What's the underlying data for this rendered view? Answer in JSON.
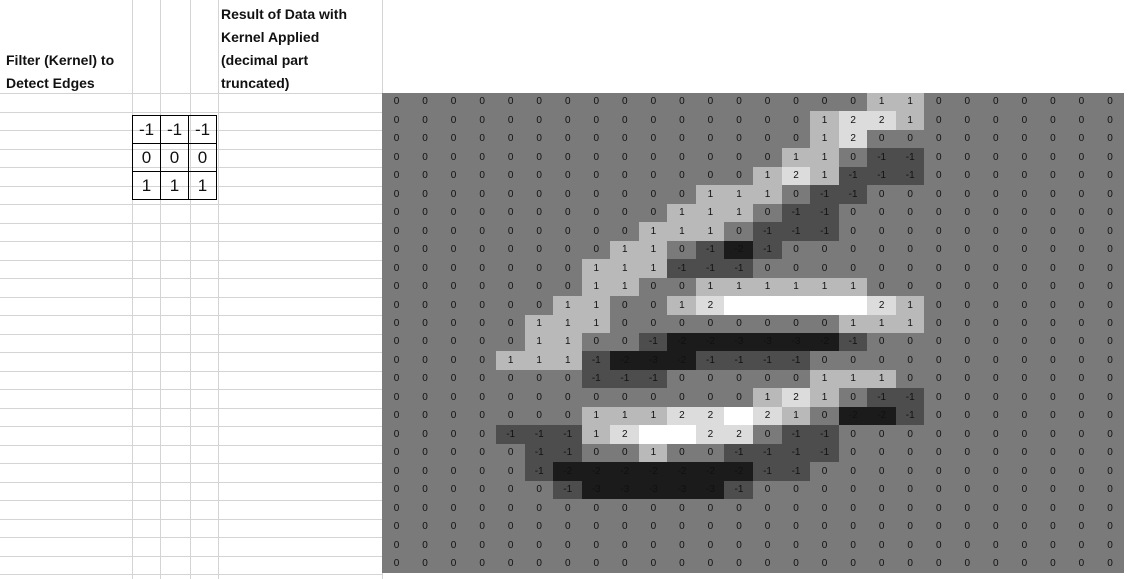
{
  "sheet": {
    "filter_label_line1": "Filter (Kernel) to",
    "filter_label_line2": "Detect Edges",
    "result_label_line1": "Result of Data with",
    "result_label_line2": "Kernel Applied",
    "result_label_line3": "(decimal part",
    "result_label_line4": "truncated)"
  },
  "kernel": [
    [
      "-1",
      "-1",
      "-1"
    ],
    [
      "0",
      "0",
      "0"
    ],
    [
      "1",
      "1",
      "1"
    ]
  ],
  "heatmap_colors": {
    "base": "#7a7a7a",
    "dark": "#1b1b1b",
    "medium_dark": "#4d4d4d",
    "slight_dark": "#6a6a6a",
    "light1": "#b9b9b9",
    "light2": "#dcdcdc",
    "light3": "#ffffff"
  },
  "result_grid": [
    [
      0,
      0,
      0,
      0,
      0,
      0,
      0,
      0,
      0,
      0,
      0,
      0,
      0,
      0,
      0,
      0,
      0,
      1,
      1,
      0,
      0,
      0,
      0,
      0,
      0,
      0
    ],
    [
      0,
      0,
      0,
      0,
      0,
      0,
      0,
      0,
      0,
      0,
      0,
      0,
      0,
      0,
      0,
      1,
      2,
      2,
      1,
      0,
      0,
      0,
      0,
      0,
      0,
      0
    ],
    [
      0,
      0,
      0,
      0,
      0,
      0,
      0,
      0,
      0,
      0,
      0,
      0,
      0,
      0,
      0,
      1,
      2,
      0,
      0,
      0,
      0,
      0,
      0,
      0,
      0,
      0
    ],
    [
      0,
      0,
      0,
      0,
      0,
      0,
      0,
      0,
      0,
      0,
      0,
      0,
      0,
      0,
      1,
      1,
      0,
      -1,
      -1,
      0,
      0,
      0,
      0,
      0,
      0,
      0
    ],
    [
      0,
      0,
      0,
      0,
      0,
      0,
      0,
      0,
      0,
      0,
      0,
      0,
      0,
      1,
      2,
      1,
      -1,
      -1,
      -1,
      0,
      0,
      0,
      0,
      0,
      0,
      0
    ],
    [
      0,
      0,
      0,
      0,
      0,
      0,
      0,
      0,
      0,
      0,
      0,
      1,
      1,
      1,
      0,
      -1,
      -1,
      0,
      0,
      0,
      0,
      0,
      0,
      0,
      0,
      0
    ],
    [
      0,
      0,
      0,
      0,
      0,
      0,
      0,
      0,
      0,
      0,
      1,
      1,
      1,
      0,
      -1,
      -1,
      0,
      0,
      0,
      0,
      0,
      0,
      0,
      0,
      0,
      0
    ],
    [
      0,
      0,
      0,
      0,
      0,
      0,
      0,
      0,
      0,
      1,
      1,
      1,
      0,
      -1,
      -1,
      -1,
      0,
      0,
      0,
      0,
      0,
      0,
      0,
      0,
      0,
      0
    ],
    [
      0,
      0,
      0,
      0,
      0,
      0,
      0,
      0,
      1,
      1,
      0,
      -1,
      -2,
      -1,
      0,
      0,
      0,
      0,
      0,
      0,
      0,
      0,
      0,
      0,
      0,
      0
    ],
    [
      0,
      0,
      0,
      0,
      0,
      0,
      0,
      1,
      1,
      1,
      -1,
      -1,
      -1,
      0,
      0,
      0,
      0,
      0,
      0,
      0,
      0,
      0,
      0,
      0,
      0,
      0
    ],
    [
      0,
      0,
      0,
      0,
      0,
      0,
      0,
      1,
      1,
      0,
      0,
      1,
      1,
      1,
      1,
      1,
      1,
      0,
      0,
      0,
      0,
      0,
      0,
      0,
      0,
      0
    ],
    [
      0,
      0,
      0,
      0,
      0,
      0,
      1,
      1,
      0,
      0,
      1,
      2,
      3,
      3,
      3,
      3,
      3,
      2,
      1,
      0,
      0,
      0,
      0,
      0,
      0,
      0
    ],
    [
      0,
      0,
      0,
      0,
      0,
      1,
      1,
      1,
      0,
      0,
      0,
      0,
      0,
      0,
      0,
      0,
      1,
      1,
      1,
      0,
      0,
      0,
      0,
      0,
      0,
      0
    ],
    [
      0,
      0,
      0,
      0,
      0,
      1,
      1,
      0,
      0,
      -1,
      -2,
      -2,
      -3,
      -3,
      -3,
      -2,
      -1,
      0,
      0,
      0,
      0,
      0,
      0,
      0,
      0,
      0
    ],
    [
      0,
      0,
      0,
      0,
      1,
      1,
      1,
      -1,
      -2,
      -3,
      -2,
      -1,
      -1,
      -1,
      -1,
      0,
      0,
      0,
      0,
      0,
      0,
      0,
      0,
      0,
      0,
      0
    ],
    [
      0,
      0,
      0,
      0,
      0,
      0,
      0,
      -1,
      -1,
      -1,
      0,
      0,
      0,
      0,
      0,
      1,
      1,
      1,
      0,
      0,
      0,
      0,
      0,
      0,
      0,
      0
    ],
    [
      0,
      0,
      0,
      0,
      0,
      0,
      0,
      0,
      0,
      0,
      0,
      0,
      0,
      1,
      2,
      1,
      0,
      -1,
      -1,
      0,
      0,
      0,
      0,
      0,
      0,
      0
    ],
    [
      0,
      0,
      0,
      0,
      0,
      0,
      0,
      1,
      1,
      1,
      2,
      2,
      3,
      2,
      1,
      0,
      -2,
      -2,
      -1,
      0,
      0,
      0,
      0,
      0,
      0,
      0
    ],
    [
      0,
      0,
      0,
      0,
      -1,
      -1,
      -1,
      1,
      2,
      3,
      3,
      2,
      2,
      0,
      -1,
      -1,
      0,
      0,
      0,
      0,
      0,
      0,
      0,
      0,
      0,
      0
    ],
    [
      0,
      0,
      0,
      0,
      0,
      -1,
      -1,
      0,
      0,
      1,
      0,
      0,
      -1,
      -1,
      -1,
      -1,
      0,
      0,
      0,
      0,
      0,
      0,
      0,
      0,
      0,
      0
    ],
    [
      0,
      0,
      0,
      0,
      0,
      -1,
      -2,
      -2,
      -2,
      -2,
      -2,
      -2,
      -2,
      -1,
      -1,
      0,
      0,
      0,
      0,
      0,
      0,
      0,
      0,
      0,
      0,
      0
    ],
    [
      0,
      0,
      0,
      0,
      0,
      0,
      -1,
      -3,
      -3,
      -3,
      -3,
      -3,
      -1,
      0,
      0,
      0,
      0,
      0,
      0,
      0,
      0,
      0,
      0,
      0,
      0,
      0
    ],
    [
      0,
      0,
      0,
      0,
      0,
      0,
      0,
      0,
      0,
      0,
      0,
      0,
      0,
      0,
      0,
      0,
      0,
      0,
      0,
      0,
      0,
      0,
      0,
      0,
      0,
      0
    ],
    [
      0,
      0,
      0,
      0,
      0,
      0,
      0,
      0,
      0,
      0,
      0,
      0,
      0,
      0,
      0,
      0,
      0,
      0,
      0,
      0,
      0,
      0,
      0,
      0,
      0,
      0
    ],
    [
      0,
      0,
      0,
      0,
      0,
      0,
      0,
      0,
      0,
      0,
      0,
      0,
      0,
      0,
      0,
      0,
      0,
      0,
      0,
      0,
      0,
      0,
      0,
      0,
      0,
      0
    ],
    [
      0,
      0,
      0,
      0,
      0,
      0,
      0,
      0,
      0,
      0,
      0,
      0,
      0,
      0,
      0,
      0,
      0,
      0,
      0,
      0,
      0,
      0,
      0,
      0,
      0,
      0
    ]
  ]
}
